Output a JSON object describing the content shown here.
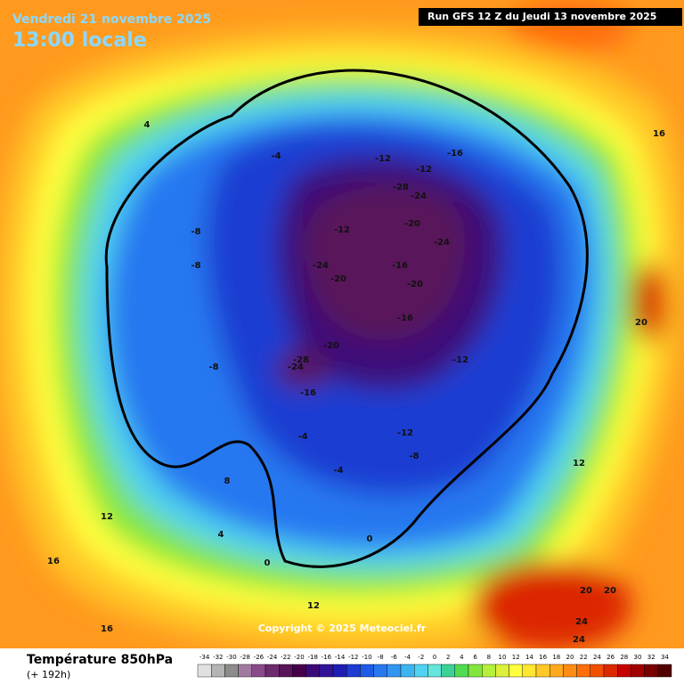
{
  "header": {
    "date": "Vendredi 21 novembre 2025",
    "time": "13:00 locale",
    "run": "Run GFS 12 Z du Jeudi 13 novembre 2025"
  },
  "copyright": "Copyright © 2025 Meteociel.fr",
  "legend": {
    "title": "Température 850hPa",
    "subtitle": "(+ 192h)",
    "labels": [
      -34,
      -32,
      -30,
      -28,
      -26,
      -24,
      -22,
      -20,
      -18,
      -16,
      -14,
      -12,
      -10,
      -8,
      -6,
      -4,
      -2,
      0,
      2,
      4,
      6,
      8,
      10,
      12,
      14,
      16,
      18,
      20,
      22,
      24,
      26,
      28,
      30,
      32,
      34
    ],
    "colors": [
      "#e0e0e0",
      "#b4b4b4",
      "#8c8c8c",
      "#a07aa0",
      "#8a4a8a",
      "#6e2a6e",
      "#5a145a",
      "#46004a",
      "#3c0a78",
      "#321496",
      "#1e1eb4",
      "#1e3cd2",
      "#1e5ae6",
      "#2878f0",
      "#3296f0",
      "#3cb4f0",
      "#50d2f0",
      "#64e6dc",
      "#3cd296",
      "#50dc50",
      "#82e63c",
      "#b4f03c",
      "#dcf03c",
      "#ffff3c",
      "#ffe632",
      "#ffc828",
      "#ffaa1e",
      "#ff8c14",
      "#ff6e0a",
      "#f05000",
      "#dc2800",
      "#c80000",
      "#a00000",
      "#780000",
      "#500000"
    ]
  },
  "contour_labels": [
    -28,
    -24,
    -24,
    -20,
    -24,
    -20,
    -16,
    -20,
    -16,
    -12,
    -12,
    -16,
    -12,
    -8,
    -8,
    -8,
    -4,
    -4,
    0,
    0,
    4,
    4,
    8,
    12,
    12,
    16,
    16,
    20,
    20,
    24,
    24,
    -28,
    -24,
    -20,
    -16,
    -12,
    -12,
    -8,
    -4,
    12,
    16,
    20
  ]
}
